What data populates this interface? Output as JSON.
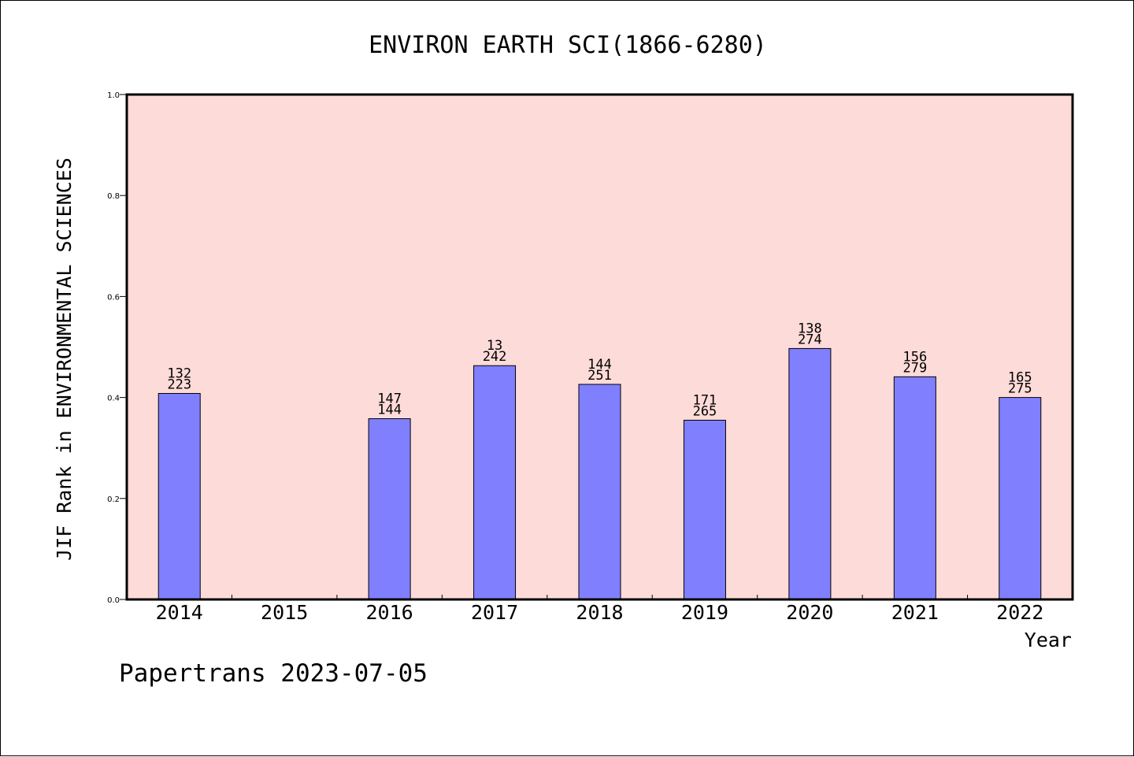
{
  "chart_data": {
    "type": "bar",
    "title": "ENVIRON EARTH SCI(1866-6280)",
    "xlabel": "Year",
    "ylabel": "JIF Rank in ENVIRONMENTAL SCIENCES",
    "ylim": [
      0,
      1.0
    ],
    "yticks": [
      "0.0",
      "0.2",
      "0.4",
      "0.6",
      "0.8",
      "1.0"
    ],
    "categories": [
      "2014",
      "2015",
      "2016",
      "2017",
      "2018",
      "2019",
      "2020",
      "2021",
      "2022"
    ],
    "values": [
      0.408,
      null,
      0.358,
      0.463,
      0.426,
      0.355,
      0.497,
      0.441,
      0.4
    ],
    "labels_top": [
      "132",
      "",
      "147",
      "13",
      "144",
      "171",
      "138",
      "156",
      "165"
    ],
    "labels_bottom": [
      "223",
      "",
      "144",
      "242",
      "251",
      "265",
      "274",
      "279",
      "275"
    ],
    "grid": false,
    "colors": {
      "plot_background": "#fddbd8",
      "bar_fill": "#8080ff",
      "bar_stroke": "#000000"
    }
  },
  "footer": "Papertrans 2023-07-05"
}
